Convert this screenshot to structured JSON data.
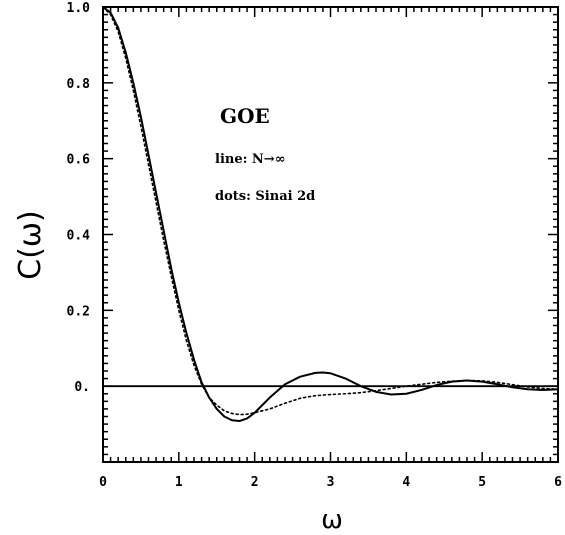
{
  "chart_data": {
    "type": "line",
    "xlabel": "ω",
    "ylabel": "C(ω)",
    "xlim": [
      0,
      6
    ],
    "ylim": [
      -0.2,
      1.0
    ],
    "x_ticks": [
      0,
      1,
      2,
      3,
      4,
      5,
      6
    ],
    "x_tick_labels": [
      "0",
      "1",
      "2",
      "3",
      "4",
      "5",
      "6"
    ],
    "y_ticks": [
      0.0,
      0.2,
      0.4,
      0.6,
      0.8,
      1.0
    ],
    "y_tick_labels": [
      "0.",
      "0.2",
      "0.4",
      "0.6",
      "0.8",
      "1.0"
    ],
    "zero_line": true,
    "grid": false,
    "annotations": {
      "title": "GOE",
      "line_label": "line: N→∞",
      "dots_label": "dots: Sinai 2d"
    },
    "series": [
      {
        "style": "solid",
        "x": [
          0,
          0.1,
          0.2,
          0.3,
          0.4,
          0.5,
          0.6,
          0.7,
          0.8,
          0.9,
          1.0,
          1.1,
          1.2,
          1.3,
          1.4,
          1.5,
          1.6,
          1.7,
          1.8,
          1.9,
          2.0,
          2.1,
          2.2,
          2.4,
          2.6,
          2.8,
          2.9,
          3.0,
          3.2,
          3.4,
          3.6,
          3.8,
          4.0,
          4.2,
          4.4,
          4.6,
          4.8,
          5.0,
          5.2,
          5.4,
          5.6,
          5.8,
          6.0
        ],
        "y": [
          1.0,
          0.985,
          0.945,
          0.88,
          0.8,
          0.71,
          0.61,
          0.51,
          0.41,
          0.31,
          0.22,
          0.14,
          0.07,
          0.01,
          -0.03,
          -0.06,
          -0.08,
          -0.09,
          -0.092,
          -0.085,
          -0.07,
          -0.05,
          -0.03,
          0.005,
          0.025,
          0.035,
          0.036,
          0.034,
          0.02,
          0.0,
          -0.015,
          -0.022,
          -0.02,
          -0.01,
          0.003,
          0.012,
          0.015,
          0.012,
          0.005,
          -0.003,
          -0.008,
          -0.01,
          -0.008
        ]
      },
      {
        "style": "dotted",
        "x": [
          0,
          0.1,
          0.2,
          0.3,
          0.4,
          0.5,
          0.6,
          0.7,
          0.8,
          0.9,
          1.0,
          1.1,
          1.2,
          1.3,
          1.4,
          1.5,
          1.6,
          1.7,
          1.8,
          1.9,
          2.0,
          2.2,
          2.4,
          2.6,
          2.8,
          3.0,
          3.2,
          3.4,
          3.6,
          3.8,
          4.0,
          4.2,
          4.4,
          4.6,
          4.8,
          5.0,
          5.2,
          5.4,
          5.6,
          5.8,
          6.0
        ],
        "y": [
          1.0,
          0.98,
          0.935,
          0.865,
          0.78,
          0.685,
          0.585,
          0.485,
          0.385,
          0.29,
          0.2,
          0.12,
          0.055,
          0.005,
          -0.03,
          -0.05,
          -0.065,
          -0.072,
          -0.075,
          -0.074,
          -0.07,
          -0.06,
          -0.045,
          -0.032,
          -0.025,
          -0.022,
          -0.02,
          -0.017,
          -0.012,
          -0.006,
          0.0,
          0.005,
          0.01,
          0.013,
          0.015,
          0.014,
          0.01,
          0.004,
          -0.002,
          -0.006,
          -0.008
        ]
      }
    ]
  }
}
